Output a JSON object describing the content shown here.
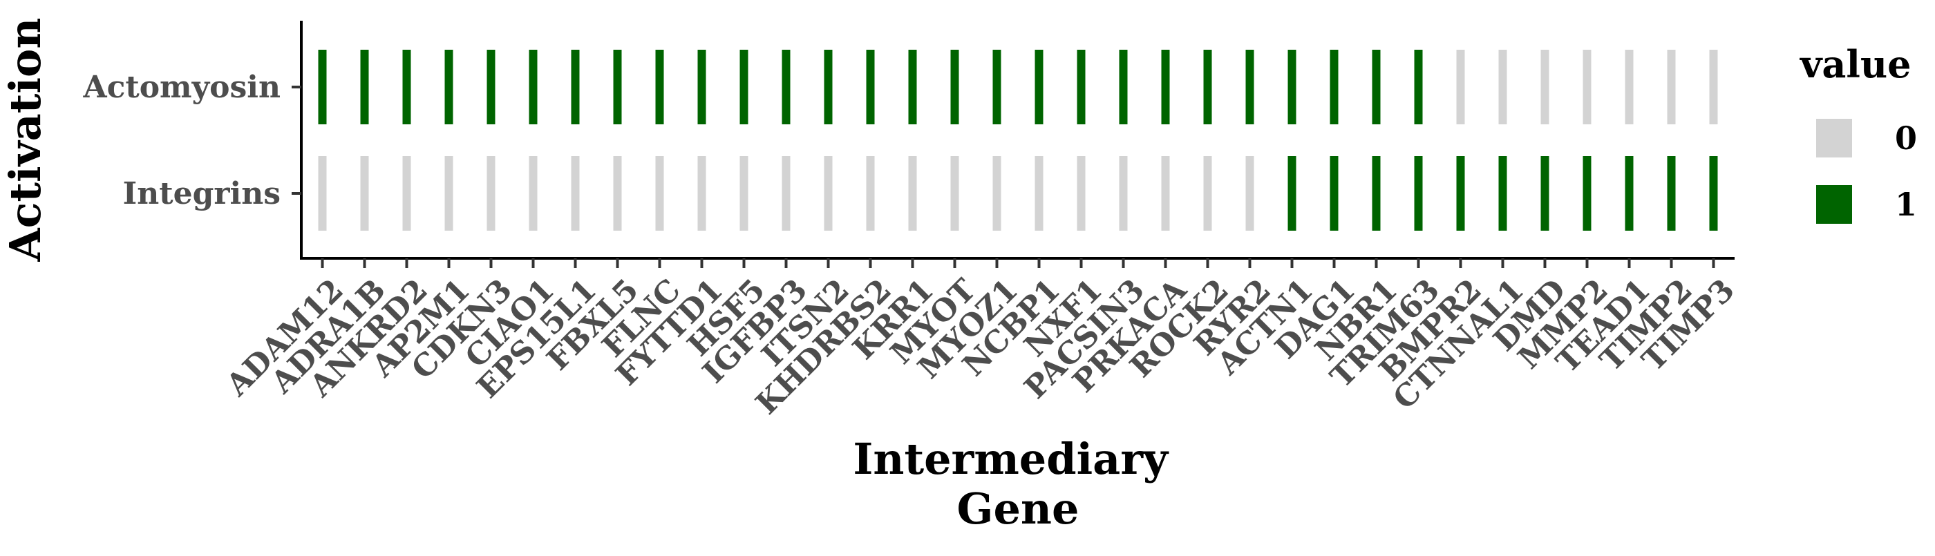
{
  "chart_data": {
    "type": "heatmap",
    "xlabel_lines": [
      "Intermediary",
      "Gene"
    ],
    "ylabel": "Activation",
    "x_categories": [
      "ADAM12",
      "ADRA1B",
      "ANKRD2",
      "AP2M1",
      "CDKN3",
      "CIAO1",
      "EPS15L1",
      "FBXL5",
      "FLNC",
      "FYTTD1",
      "HSF5",
      "IGFBP3",
      "ITSN2",
      "KHDRBS2",
      "KRR1",
      "MYOT",
      "MYOZ1",
      "NCBP1",
      "NXF1",
      "PACSIN3",
      "PRKACA",
      "ROCK2",
      "RYR2",
      "ACTN1",
      "DAG1",
      "NBR1",
      "TRIM63",
      "BMPR2",
      "CTNNAL1",
      "DMD",
      "MMP2",
      "TEAD1",
      "TIMP2",
      "TIMP3"
    ],
    "y_categories": [
      "Actomyosin",
      "Integrins"
    ],
    "values": {
      "Actomyosin": [
        1,
        1,
        1,
        1,
        1,
        1,
        1,
        1,
        1,
        1,
        1,
        1,
        1,
        1,
        1,
        1,
        1,
        1,
        1,
        1,
        1,
        1,
        1,
        1,
        1,
        1,
        1,
        0,
        0,
        0,
        0,
        0,
        0,
        0
      ],
      "Integrins": [
        0,
        0,
        0,
        0,
        0,
        0,
        0,
        0,
        0,
        0,
        0,
        0,
        0,
        0,
        0,
        0,
        0,
        0,
        0,
        0,
        0,
        0,
        0,
        1,
        1,
        1,
        1,
        1,
        1,
        1,
        1,
        1,
        1,
        1
      ]
    },
    "legend": {
      "title": "value",
      "position": "right",
      "entries": [
        {
          "label": "0",
          "color": "#d3d3d3"
        },
        {
          "label": "1",
          "color": "#006400"
        }
      ]
    },
    "grid": false
  }
}
